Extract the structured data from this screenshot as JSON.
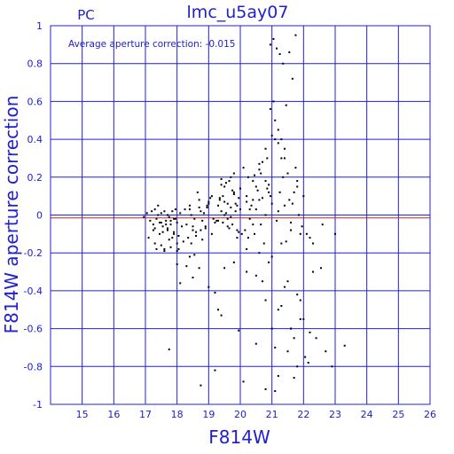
{
  "panel_label": "PC",
  "chart_data": {
    "type": "scatter",
    "title": "lmc_u5ay07",
    "xlabel": "F814W",
    "ylabel": "F814W aperture correction",
    "annotation": "Average aperture correction: -0.015",
    "xlim": [
      14,
      26
    ],
    "ylim": [
      -1,
      1
    ],
    "xticks": [
      15,
      16,
      17,
      18,
      19,
      20,
      21,
      22,
      23,
      24,
      25,
      26
    ],
    "yticks": [
      -1,
      -0.8,
      -0.6,
      -0.4,
      -0.2,
      0,
      0.2,
      0.4,
      0.6,
      0.8,
      1
    ],
    "grid": true,
    "reference_lines": [
      {
        "y": 0,
        "color": "#2020d0"
      },
      {
        "y": -0.015,
        "color": "#d02020"
      }
    ],
    "colors": {
      "axes": "#2020d0",
      "points": "#000000",
      "mean_line": "#d02020"
    },
    "x": [
      16.95,
      17.05,
      17.15,
      17.2,
      17.25,
      17.3,
      17.35,
      17.4,
      17.45,
      17.5,
      17.55,
      17.6,
      17.65,
      17.7,
      17.75,
      17.8,
      17.85,
      17.9,
      17.95,
      18.0,
      17.1,
      17.3,
      17.45,
      17.6,
      17.75,
      17.9,
      18.05,
      18.2,
      17.25,
      17.5,
      17.7,
      17.85,
      18.0,
      18.15,
      17.4,
      17.55,
      17.65,
      17.8,
      17.95,
      18.1,
      17.35,
      17.6,
      17.8,
      18.0,
      17.3,
      17.5,
      17.7,
      17.9,
      18.25,
      18.4,
      18.55,
      18.7,
      18.85,
      19.0,
      18.3,
      18.5,
      18.65,
      18.8,
      18.95,
      19.1,
      18.35,
      18.45,
      18.6,
      18.75,
      18.9,
      19.05,
      19.2,
      18.4,
      18.6,
      18.8,
      19.0,
      19.15,
      18.45,
      18.7,
      18.9,
      19.1,
      19.25,
      18.5,
      18.75,
      18.95,
      19.3,
      19.35,
      19.4,
      19.45,
      19.5,
      19.55,
      19.6,
      19.65,
      19.7,
      19.75,
      19.8,
      19.85,
      19.9,
      19.95,
      20.0,
      20.05,
      19.3,
      19.4,
      19.5,
      19.6,
      19.7,
      19.8,
      19.9,
      20.0,
      19.35,
      19.45,
      19.55,
      19.65,
      19.75,
      19.85,
      19.95,
      19.4,
      19.5,
      19.6,
      19.7,
      19.8,
      19.9,
      20.1,
      20.2,
      20.3,
      20.4,
      20.5,
      20.6,
      20.7,
      20.8,
      20.9,
      21.0,
      20.15,
      20.25,
      20.35,
      20.45,
      20.55,
      20.65,
      20.75,
      20.85,
      20.95,
      20.2,
      20.3,
      20.4,
      20.5,
      20.6,
      20.7,
      20.8,
      20.9,
      21.0,
      20.25,
      20.45,
      20.65,
      20.85,
      20.2,
      20.4,
      20.6,
      20.8,
      21.1,
      21.2,
      21.3,
      21.4,
      21.5,
      21.6,
      21.7,
      21.8,
      21.9,
      22.0,
      21.15,
      21.35,
      21.55,
      21.75,
      21.95,
      21.2,
      21.4,
      21.6,
      21.8,
      21.25,
      21.45,
      21.65,
      21.85,
      22.1,
      22.3,
      22.6,
      22.2,
      18.0,
      18.1,
      18.3,
      18.05,
      18.4,
      18.5,
      18.7,
      19.0,
      19.2,
      19.5,
      19.8,
      20.2,
      20.5,
      20.8,
      21.0,
      21.2,
      21.5,
      21.8,
      22.0,
      21.1,
      21.3,
      21.4,
      21.6,
      21.9,
      22.3,
      21.0,
      20.9,
      20.7,
      20.6,
      21.7,
      21.2,
      21.1,
      20.8,
      20.5,
      21.5,
      22.2,
      22.05,
      21.3,
      21.8,
      22.15,
      23.3,
      22.9,
      22.7,
      22.4,
      21.9,
      21.6,
      17.75,
      18.75,
      19.3,
      19.4,
      21.7,
      22.55,
      23.0,
      20.95,
      21.05,
      21.45,
      19.95,
      20.1,
      19.2,
      18.55,
      21.55,
      21.65,
      21.75,
      20.95,
      21.05,
      21.15,
      21.25,
      21.35,
      21.1,
      21.2,
      21.3,
      21.4
    ],
    "y": [
      -0.01,
      0.01,
      -0.03,
      0.02,
      -0.05,
      0.03,
      -0.02,
      0.05,
      -0.04,
      0.01,
      -0.06,
      0.02,
      -0.03,
      0.0,
      -0.01,
      -0.05,
      0.02,
      -0.02,
      0.03,
      -0.04,
      -0.12,
      -0.15,
      -0.1,
      -0.18,
      -0.13,
      -0.09,
      -0.11,
      -0.14,
      -0.08,
      -0.16,
      -0.07,
      -0.12,
      -0.19,
      -0.06,
      0.0,
      -0.09,
      -0.05,
      -0.03,
      -0.02,
      0.01,
      -0.18,
      -0.19,
      -0.17,
      -0.15,
      -0.07,
      -0.04,
      -0.08,
      -0.1,
      0.03,
      0.05,
      -0.02,
      0.08,
      0.01,
      0.06,
      -0.05,
      -0.08,
      0.12,
      -0.03,
      0.04,
      -0.1,
      -0.12,
      -0.15,
      -0.09,
      0.02,
      -0.06,
      0.09,
      -0.04,
      0.03,
      -0.11,
      -0.13,
      0.07,
      -0.02,
      0.0,
      0.04,
      -0.07,
      0.1,
      -0.03,
      -0.06,
      -0.08,
      0.05,
      0.05,
      0.08,
      0.02,
      0.1,
      0.15,
      0.01,
      -0.02,
      0.18,
      0.04,
      -0.05,
      0.12,
      0.06,
      -0.08,
      0.09,
      0.03,
      -0.1,
      -0.03,
      0.16,
      0.07,
      -0.06,
      0.2,
      0.11,
      -0.12,
      0.14,
      0.09,
      -0.04,
      0.17,
      -0.07,
      0.13,
      0.02,
      -0.09,
      0.19,
      0.0,
      0.06,
      -0.01,
      0.22,
      0.05,
      0.25,
      0.1,
      0.03,
      -0.05,
      0.15,
      0.08,
      0.28,
      0.18,
      0.12,
      0.06,
      -0.08,
      0.2,
      0.05,
      -0.1,
      0.13,
      0.22,
      -0.15,
      0.3,
      0.1,
      0.07,
      -0.02,
      0.18,
      0.03,
      0.27,
      0.09,
      0.35,
      0.16,
      0.42,
      -0.12,
      0.21,
      -0.05,
      0.14,
      -0.18,
      0.08,
      0.24,
      0.0,
      0.4,
      0.38,
      0.3,
      0.05,
      0.22,
      -0.04,
      0.12,
      0.15,
      -0.1,
      0.1,
      -0.03,
      0.2,
      0.08,
      0.25,
      -0.06,
      0.02,
      0.3,
      -0.08,
      0.18,
      0.12,
      -0.14,
      0.06,
      0.0,
      -0.1,
      -0.15,
      -0.05,
      -0.12,
      -0.26,
      -0.36,
      -0.27,
      -0.18,
      -0.22,
      -0.33,
      -0.28,
      -0.38,
      -0.41,
      -0.28,
      -0.25,
      -0.3,
      -0.32,
      -0.45,
      -0.6,
      -0.5,
      -0.35,
      -0.42,
      -0.55,
      -0.7,
      -0.48,
      -0.38,
      -0.6,
      -0.45,
      -0.3,
      -0.22,
      -0.25,
      -0.35,
      -0.2,
      -0.65,
      -0.85,
      -0.93,
      -0.92,
      -0.68,
      -0.72,
      -0.62,
      -0.75,
      -0.15,
      -0.8,
      -0.78,
      -0.69,
      -0.8,
      -0.72,
      -0.65,
      -0.55,
      -0.6,
      -0.71,
      -0.9,
      -0.5,
      -0.53,
      -0.86,
      -0.28,
      -0.1,
      0.56,
      0.6,
      0.58,
      -0.61,
      -0.88,
      -0.82,
      -0.21,
      0.86,
      0.72,
      0.95,
      0.9,
      0.93,
      0.88,
      0.85,
      0.8,
      0.5,
      0.45,
      0.4,
      0.35
    ]
  }
}
